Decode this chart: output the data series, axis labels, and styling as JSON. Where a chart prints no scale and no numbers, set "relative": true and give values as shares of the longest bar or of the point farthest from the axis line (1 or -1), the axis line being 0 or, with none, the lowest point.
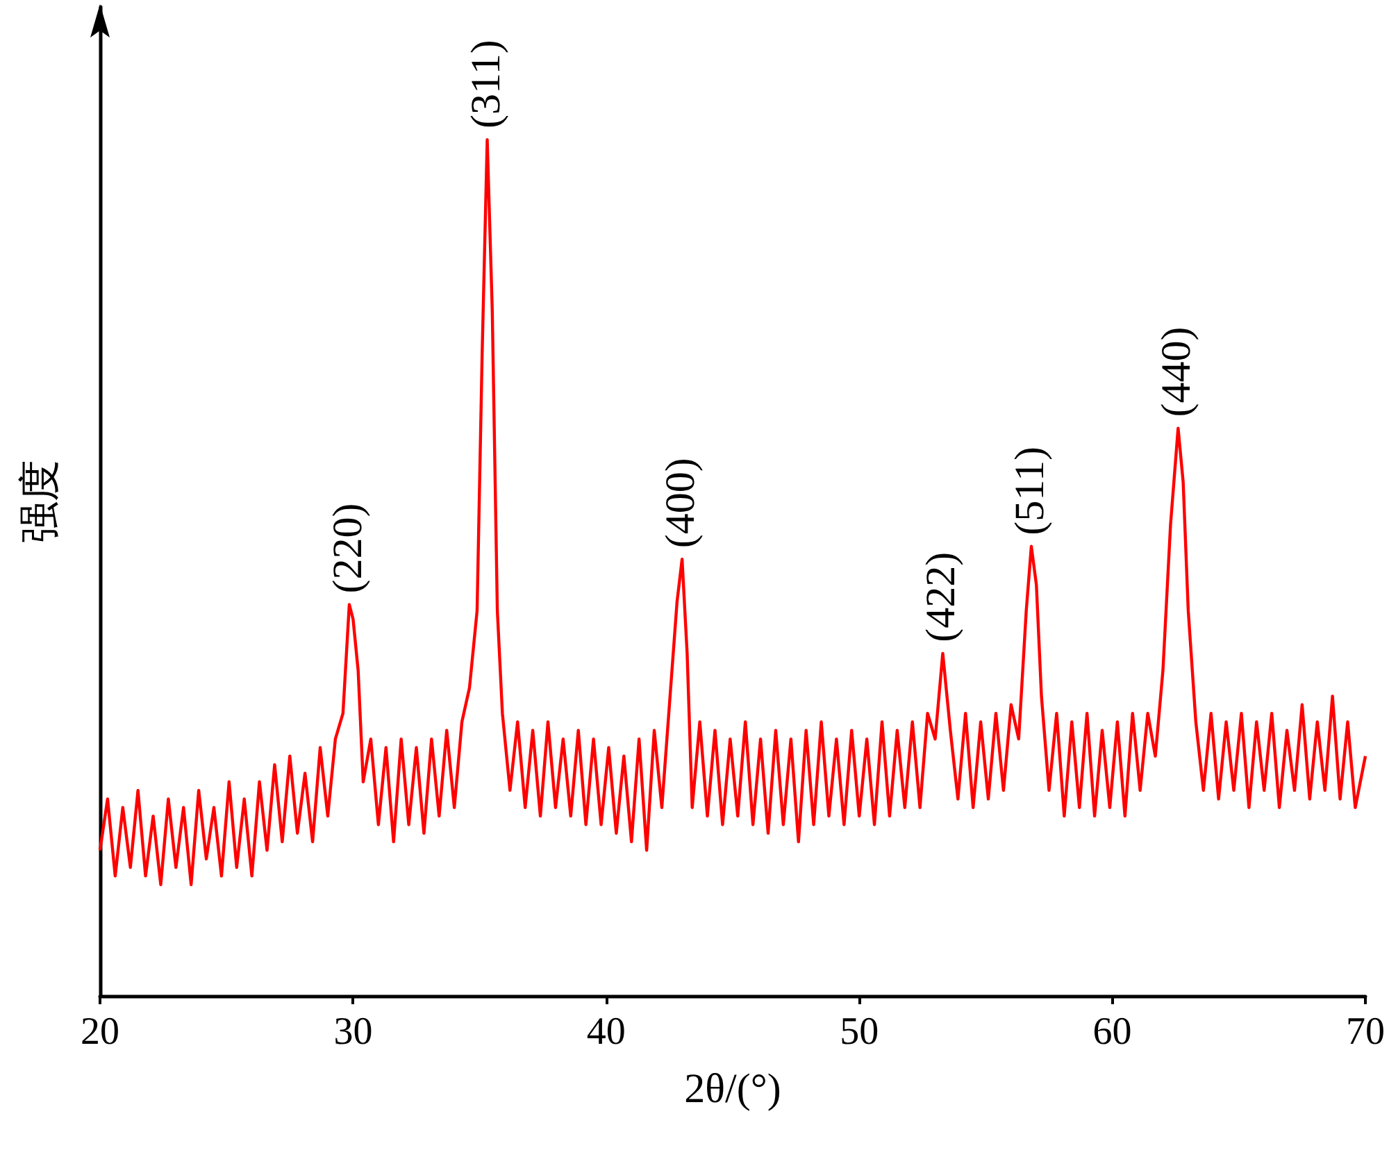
{
  "chart_data": {
    "type": "line",
    "relative": true,
    "xlabel": "2θ/(°)",
    "ylabel": "强度",
    "xlim": [
      20,
      70
    ],
    "xticks": [
      20,
      30,
      40,
      50,
      60,
      70
    ],
    "grid": false,
    "marker": "none",
    "line_style": "solid",
    "annotations": [
      {
        "text": "(220)",
        "x": 29.85,
        "y": 0.457
      },
      {
        "text": "(311)",
        "x": 35.3,
        "y": 1
      },
      {
        "text": "(400)",
        "x": 43.0,
        "y": 0.51
      },
      {
        "text": "(422)",
        "x": 53.3,
        "y": 0.4
      },
      {
        "text": "(511)",
        "x": 56.8,
        "y": 0.525
      },
      {
        "text": "(440)",
        "x": 62.6,
        "y": 0.663
      }
    ],
    "series": [
      {
        "color": "#ff0000",
        "x": [
          20.0,
          20.3,
          20.6,
          20.9,
          21.2,
          21.5,
          21.8,
          22.1,
          22.4,
          22.7,
          23.0,
          23.3,
          23.6,
          23.9,
          24.2,
          24.5,
          24.8,
          25.1,
          25.4,
          25.7,
          26.0,
          26.3,
          26.6,
          26.9,
          27.2,
          27.5,
          27.8,
          28.1,
          28.4,
          28.7,
          29.0,
          29.3,
          29.6,
          29.85,
          30.0,
          30.2,
          30.4,
          30.7,
          31.0,
          31.3,
          31.6,
          31.9,
          32.2,
          32.5,
          32.8,
          33.1,
          33.4,
          33.7,
          34.0,
          34.3,
          34.6,
          34.9,
          35.1,
          35.3,
          35.5,
          35.7,
          35.9,
          36.2,
          36.5,
          36.8,
          37.1,
          37.4,
          37.7,
          38.0,
          38.3,
          38.6,
          38.9,
          39.2,
          39.5,
          39.8,
          40.1,
          40.4,
          40.7,
          41.0,
          41.3,
          41.6,
          41.9,
          42.2,
          42.5,
          42.8,
          43.0,
          43.2,
          43.4,
          43.7,
          44.0,
          44.3,
          44.6,
          44.9,
          45.2,
          45.5,
          45.8,
          46.1,
          46.4,
          46.7,
          47.0,
          47.3,
          47.6,
          47.9,
          48.2,
          48.5,
          48.8,
          49.1,
          49.4,
          49.7,
          50.0,
          50.3,
          50.6,
          50.9,
          51.2,
          51.5,
          51.8,
          52.1,
          52.4,
          52.7,
          53.0,
          53.3,
          53.6,
          53.9,
          54.2,
          54.5,
          54.8,
          55.1,
          55.4,
          55.7,
          56.0,
          56.3,
          56.6,
          56.8,
          57.0,
          57.2,
          57.5,
          57.8,
          58.1,
          58.4,
          58.7,
          59.0,
          59.3,
          59.6,
          59.9,
          60.2,
          60.5,
          60.8,
          61.1,
          61.4,
          61.7,
          62.0,
          62.3,
          62.6,
          62.8,
          63.0,
          63.3,
          63.6,
          63.9,
          64.2,
          64.5,
          64.8,
          65.1,
          65.4,
          65.7,
          66.0,
          66.3,
          66.6,
          66.9,
          67.2,
          67.5,
          67.8,
          68.1,
          68.4,
          68.7,
          69.0,
          69.3,
          69.6,
          70.0
        ],
        "values": [
          0.17,
          0.23,
          0.14,
          0.22,
          0.15,
          0.24,
          0.14,
          0.21,
          0.13,
          0.23,
          0.15,
          0.22,
          0.13,
          0.24,
          0.16,
          0.22,
          0.14,
          0.25,
          0.15,
          0.23,
          0.14,
          0.25,
          0.17,
          0.27,
          0.18,
          0.28,
          0.19,
          0.26,
          0.18,
          0.29,
          0.21,
          0.3,
          0.33,
          0.457,
          0.44,
          0.38,
          0.25,
          0.3,
          0.2,
          0.29,
          0.18,
          0.3,
          0.2,
          0.29,
          0.19,
          0.3,
          0.21,
          0.31,
          0.22,
          0.32,
          0.36,
          0.45,
          0.75,
          1,
          0.8,
          0.45,
          0.33,
          0.24,
          0.32,
          0.22,
          0.31,
          0.21,
          0.32,
          0.22,
          0.3,
          0.21,
          0.31,
          0.2,
          0.3,
          0.2,
          0.29,
          0.19,
          0.28,
          0.18,
          0.3,
          0.17,
          0.31,
          0.22,
          0.34,
          0.46,
          0.51,
          0.4,
          0.22,
          0.32,
          0.21,
          0.31,
          0.2,
          0.3,
          0.21,
          0.32,
          0.2,
          0.3,
          0.19,
          0.31,
          0.2,
          0.3,
          0.18,
          0.31,
          0.2,
          0.32,
          0.21,
          0.3,
          0.2,
          0.31,
          0.21,
          0.3,
          0.2,
          0.32,
          0.21,
          0.31,
          0.22,
          0.32,
          0.22,
          0.33,
          0.3,
          0.4,
          0.31,
          0.23,
          0.33,
          0.22,
          0.32,
          0.23,
          0.33,
          0.24,
          0.34,
          0.3,
          0.45,
          0.525,
          0.48,
          0.35,
          0.24,
          0.33,
          0.21,
          0.32,
          0.22,
          0.33,
          0.21,
          0.31,
          0.22,
          0.32,
          0.21,
          0.33,
          0.24,
          0.33,
          0.28,
          0.38,
          0.55,
          0.663,
          0.6,
          0.45,
          0.32,
          0.24,
          0.33,
          0.23,
          0.32,
          0.24,
          0.33,
          0.22,
          0.32,
          0.24,
          0.33,
          0.22,
          0.31,
          0.24,
          0.34,
          0.23,
          0.32,
          0.24,
          0.35,
          0.23,
          0.32,
          0.22,
          0.28
        ]
      }
    ]
  }
}
